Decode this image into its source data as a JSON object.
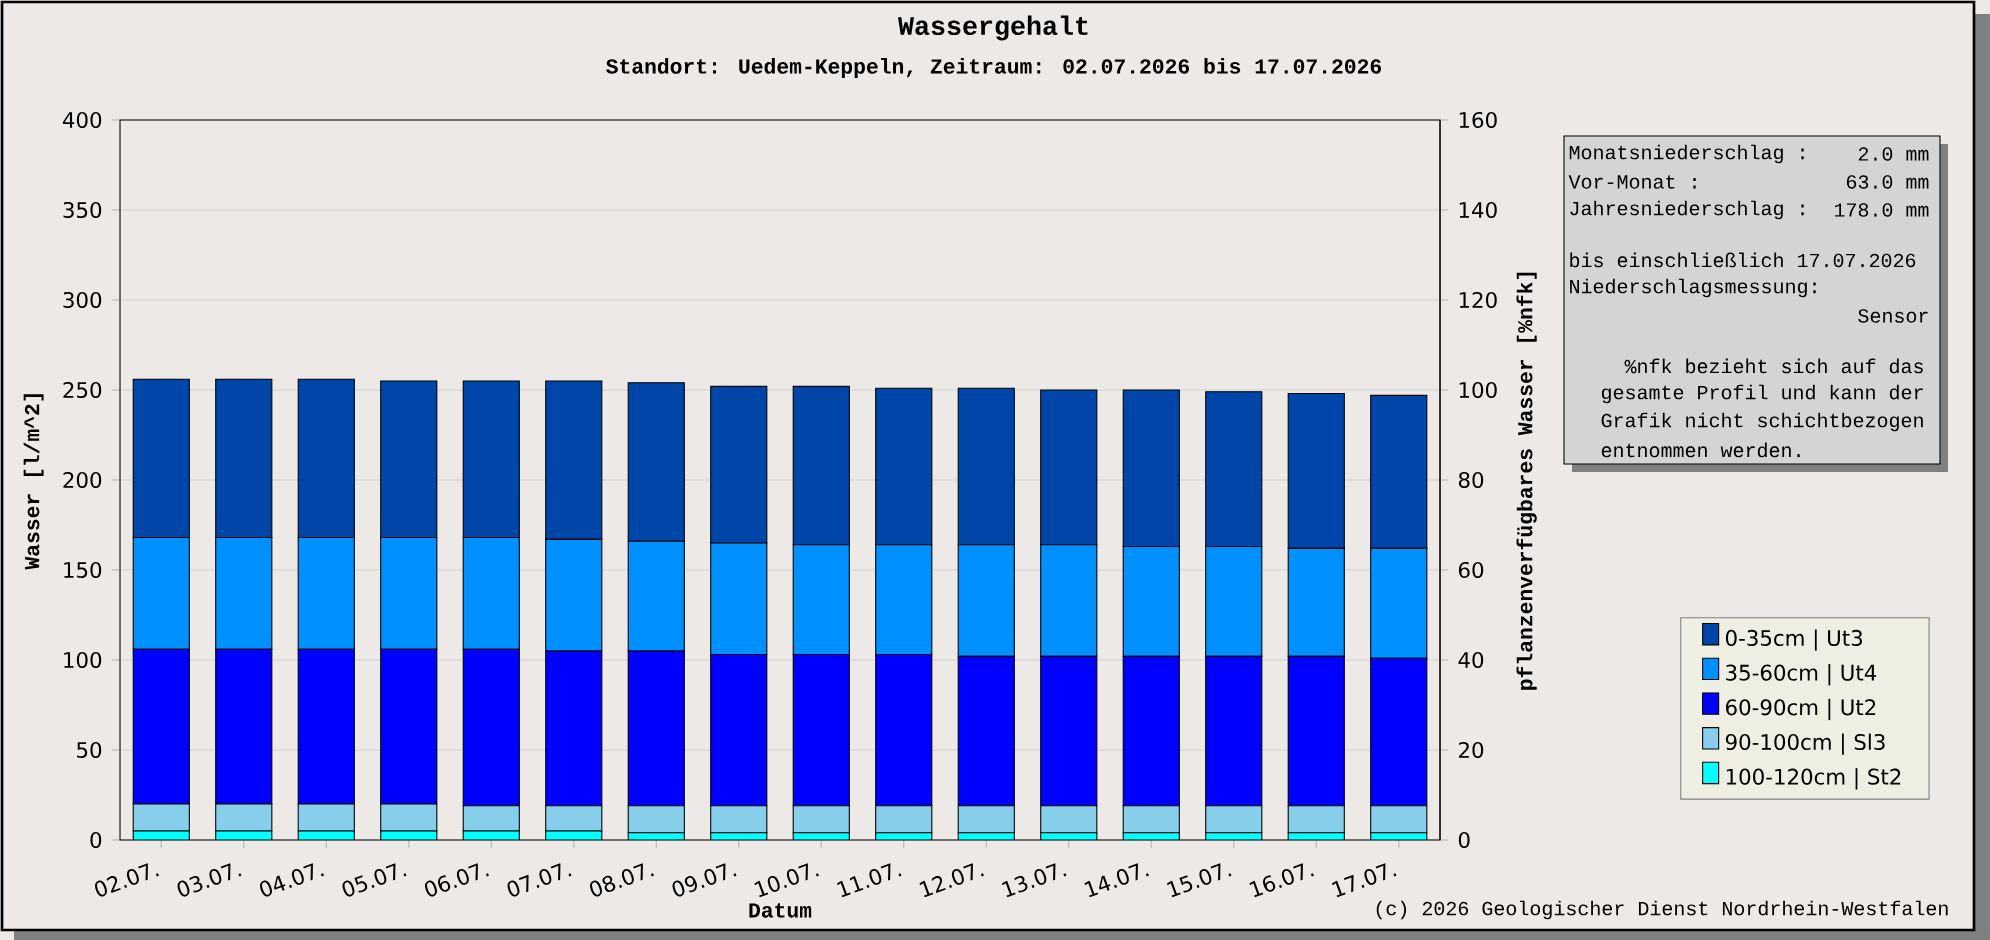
{
  "chart_data": {
    "type": "bar",
    "title": "Wassergehalt",
    "subtitle": "Standort: Uedem-Keppeln, Zeitraum: 02.07.2026 bis 17.07.2026",
    "xlabel": "Datum",
    "ylabel": "Wasser [l/m^2]",
    "y2label": "pflanzenverfügbares Wasser [%nfk]",
    "categories": [
      "02.07.",
      "03.07.",
      "04.07.",
      "05.07.",
      "06.07.",
      "07.07.",
      "08.07.",
      "09.07.",
      "10.07.",
      "11.07.",
      "12.07.",
      "13.07.",
      "14.07.",
      "15.07.",
      "16.07.",
      "17.07."
    ],
    "stacked": true,
    "series": [
      {
        "name": "100-120cm | St2",
        "color": "#00ffff",
        "values": [
          5,
          5,
          5,
          5,
          5,
          5,
          4,
          4,
          4,
          4,
          4,
          4,
          4,
          4,
          4,
          4
        ]
      },
      {
        "name": "90-100cm | Sl3",
        "color": "#87ceeb",
        "values": [
          15,
          15,
          15,
          15,
          14,
          14,
          15,
          15,
          15,
          15,
          15,
          15,
          15,
          15,
          15,
          15
        ]
      },
      {
        "name": "60-90cm | Ut2",
        "color": "#0000ff",
        "values": [
          86,
          86,
          86,
          86,
          87,
          86,
          86,
          84,
          84,
          84,
          83,
          83,
          83,
          83,
          83,
          82
        ]
      },
      {
        "name": "35-60cm | Ut4",
        "color": "#0090ff",
        "values": [
          62,
          62,
          62,
          62,
          62,
          62,
          61,
          62,
          61,
          61,
          62,
          62,
          61,
          61,
          60,
          61
        ]
      },
      {
        "name": "0-35cm | Ut3",
        "color": "#0046a8",
        "values": [
          88,
          88,
          88,
          87,
          87,
          88,
          88,
          87,
          88,
          87,
          87,
          86,
          87,
          86,
          86,
          85
        ]
      }
    ],
    "ylim": [
      0,
      400
    ],
    "yticks": [
      0,
      50,
      100,
      150,
      200,
      250,
      300,
      350,
      400
    ],
    "y2lim": [
      0,
      160
    ],
    "y2ticks": [
      0,
      20,
      40,
      60,
      80,
      100,
      120,
      140,
      160
    ],
    "grid": "y",
    "legend": "bottom right",
    "annotations": [
      "Monatsniederschlag :",
      "2.0 mm",
      "Vor-Monat          :",
      "63.0 mm",
      "Jahresniederschlag :",
      "178.0 mm",
      "bis einschließlich 17.07.2026",
      "Niederschlagsmessung:",
      "Sensor",
      "%nfk bezieht sich auf das",
      "gesamte Profil und kann der",
      "Grafik nicht schichtbezogen",
      "entnommen werden.",
      "(c) 2026 Geologischer Dienst Nordrhein-Westfalen"
    ]
  }
}
